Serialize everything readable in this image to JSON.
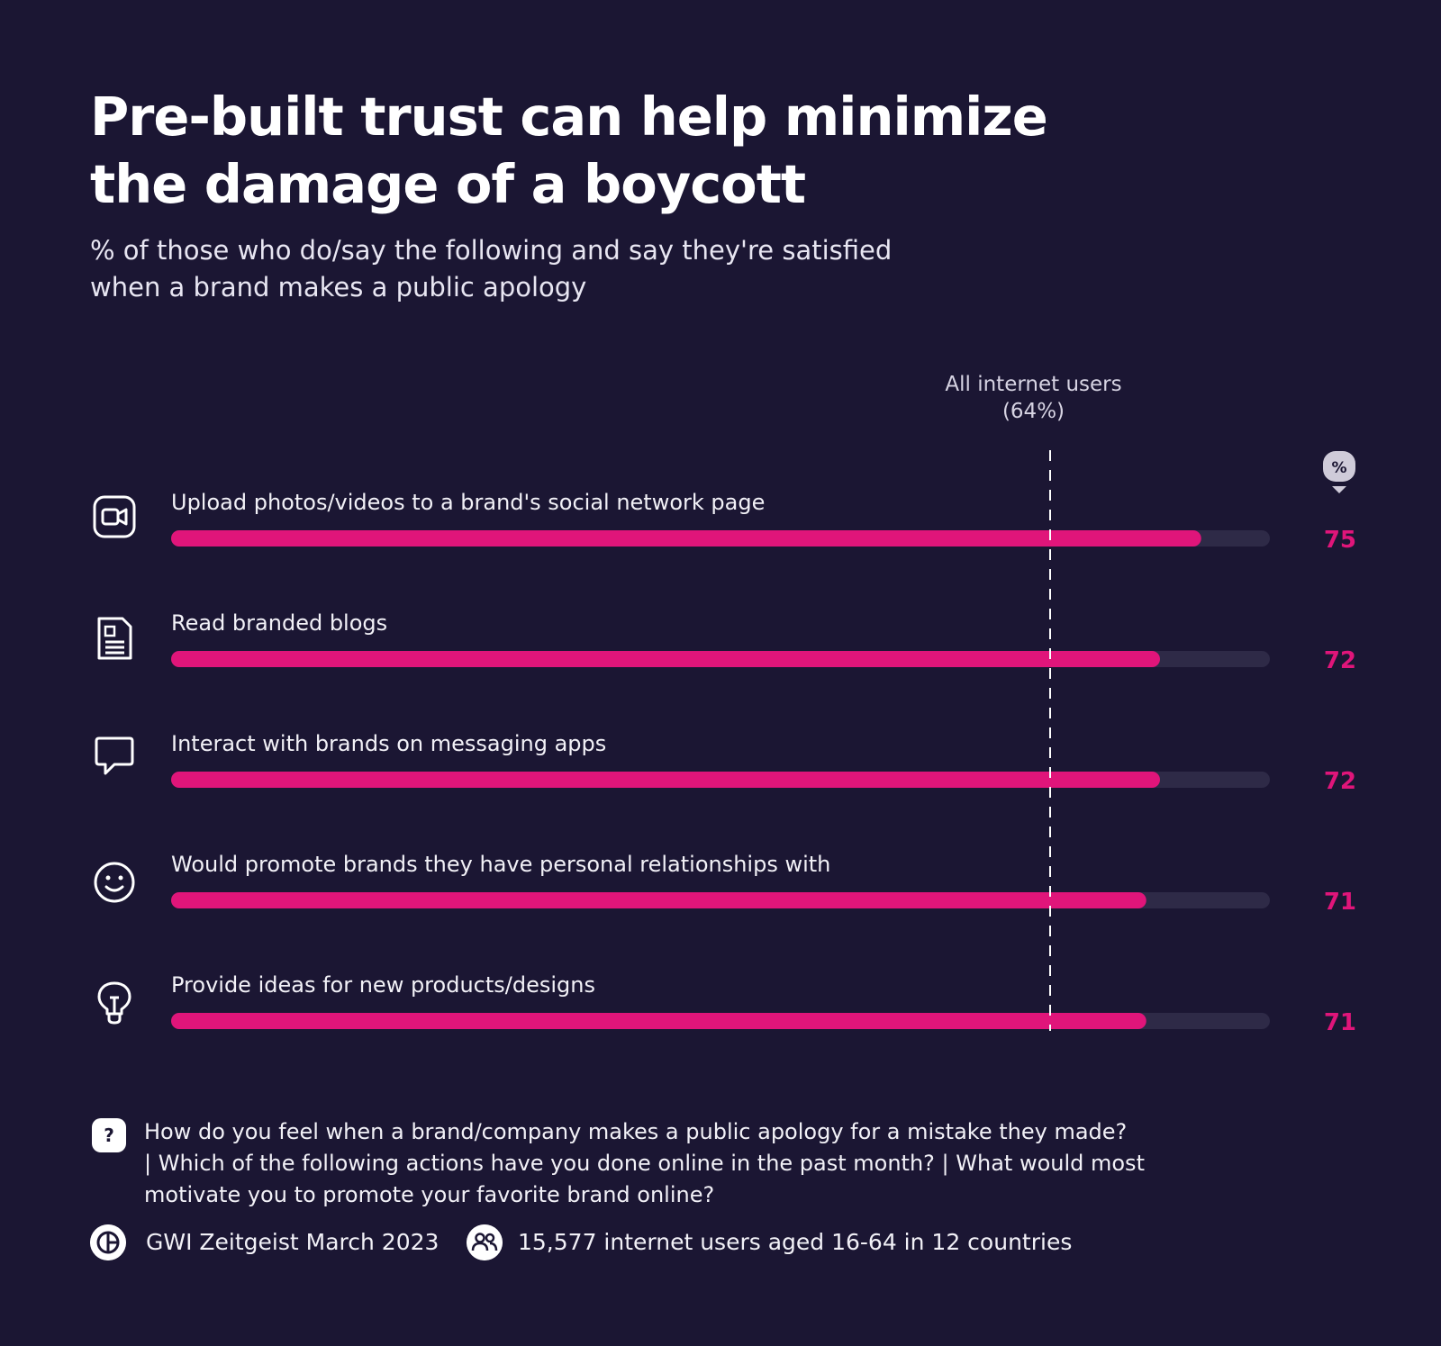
{
  "header": {
    "title_line1": "Pre-built trust can help minimize",
    "title_line2": "the damage of a boycott",
    "subtitle_line1": "% of those who do/say the following and say they're satisfied",
    "subtitle_line2": "when a brand makes a public apology"
  },
  "reference": {
    "label_line1": "All internet users",
    "label_line2": "(64%)"
  },
  "unit_badge": "%",
  "chart_data": {
    "type": "bar",
    "orientation": "horizontal",
    "title": "Pre-built trust can help minimize the damage of a boycott",
    "subtitle": "% of those who do/say the following and say they're satisfied when a brand makes a public apology",
    "categories": [
      "Upload photos/videos to a brand's social network page",
      "Read branded blogs",
      "Interact with brands on messaging apps",
      "Would promote brands they have personal relationships with",
      "Provide ideas for new products/designs"
    ],
    "values": [
      75,
      72,
      72,
      71,
      71
    ],
    "icons": [
      "video-camera-icon",
      "document-icon",
      "chat-bubble-icon",
      "smiley-face-icon",
      "lightbulb-icon"
    ],
    "reference_line": {
      "label": "All internet users (64%)",
      "value": 64
    },
    "xlim": [
      0,
      80
    ],
    "unit": "%",
    "colors": {
      "bar": "#e0157a",
      "track": "#2e2a47",
      "value_text": "#e0157a",
      "background": "#1b1633"
    }
  },
  "footer": {
    "question_mark": "?",
    "question_line1": "How do you feel when a brand/company makes a public apology for a mistake they made?",
    "question_line2": "| Which of the following actions have you done online in the past month? | What would most",
    "question_line3": "motivate you to promote your favorite brand online?",
    "source": "GWI Zeitgeist March 2023",
    "sample": "15,577 internet users aged 16-64 in 12 countries"
  }
}
